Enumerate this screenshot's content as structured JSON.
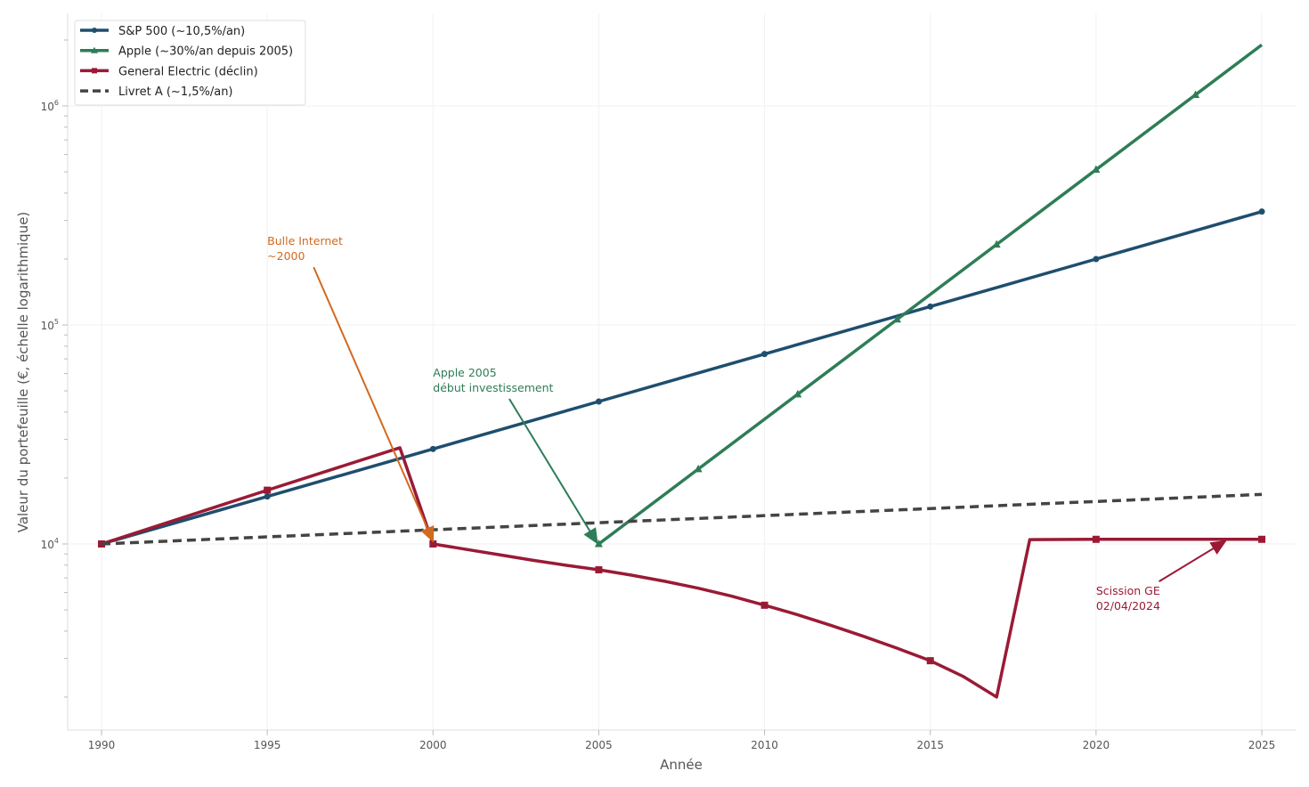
{
  "chart_data": {
    "type": "line",
    "title": "",
    "xlabel": "Année",
    "ylabel": "Valeur du portefeuille (€, échelle logarithmique)",
    "yscale": "log",
    "xlim": [
      1989,
      2026
    ],
    "ylim": [
      1413,
      2600000
    ],
    "xticks": [
      1990,
      1995,
      2000,
      2005,
      2010,
      2015,
      2020,
      2025
    ],
    "yticks": [
      {
        "value": 10000,
        "base": "10",
        "exp": "4"
      },
      {
        "value": 100000,
        "base": "10",
        "exp": "5"
      },
      {
        "value": 1000000,
        "base": "10",
        "exp": "6"
      }
    ],
    "grid": true,
    "legend_position": "top-left",
    "series": [
      {
        "name": "S&P 500 (~10,5%/an)",
        "color": "#1f4e6e",
        "marker": "circle",
        "dash": false,
        "x": [
          1990,
          1995,
          2000,
          2005,
          2010,
          2015,
          2020,
          2025
        ],
        "y": [
          10000,
          16470,
          27140,
          44710,
          73660,
          121350,
          199900,
          329300
        ],
        "marker_x": [
          1990,
          1995,
          2000,
          2005,
          2010,
          2015,
          2020,
          2025
        ]
      },
      {
        "name": "Apple (~30%/an depuis 2005)",
        "color": "#2e7d57",
        "marker": "triangle",
        "dash": false,
        "x": [
          2005,
          2008,
          2011,
          2014,
          2017,
          2020,
          2023,
          2025
        ],
        "y": [
          10000,
          21970,
          48270,
          106040,
          232980,
          511850,
          1124550,
          1900500
        ],
        "marker_x": [
          2005,
          2008,
          2011,
          2014,
          2017,
          2020,
          2023
        ]
      },
      {
        "name": "General Electric (déclin)",
        "color": "#9a1a35",
        "marker": "square",
        "dash": false,
        "x": [
          1990,
          1995,
          1999,
          2000,
          2001,
          2002,
          2003,
          2004,
          2005,
          2006,
          2007,
          2008,
          2009,
          2010,
          2011,
          2012,
          2013,
          2014,
          2015,
          2016,
          2017,
          2018,
          2020,
          2025
        ],
        "y": [
          10000,
          17600,
          27500,
          10000,
          9450,
          8930,
          8430,
          8000,
          7620,
          7200,
          6750,
          6280,
          5780,
          5250,
          4750,
          4250,
          3780,
          3340,
          2930,
          2480,
          2000,
          10470,
          10500,
          10500
        ],
        "marker_x": [
          1990,
          1995,
          2000,
          2005,
          2010,
          2015,
          2020,
          2025
        ]
      },
      {
        "name": "Livret A (~1,5%/an)",
        "color": "#444444",
        "marker": "none",
        "dash": true,
        "x": [
          1990,
          1995,
          2000,
          2005,
          2010,
          2015,
          2020,
          2025
        ],
        "y": [
          10000,
          10773,
          11605,
          12502,
          13469,
          14509,
          15631,
          16839
        ],
        "marker_x": []
      }
    ],
    "annotations": [
      {
        "lines": [
          "Bulle Internet",
          "~2000"
        ],
        "color": "#d2691e",
        "text_xy": [
          1995.0,
          243000
        ],
        "arrow_from": [
          1996.4,
          183600
        ],
        "arrow_to": [
          2000,
          10300
        ]
      },
      {
        "lines": [
          "Apple 2005",
          "début investissement"
        ],
        "color": "#2e7d57",
        "text_xy": [
          2000.0,
          61000
        ],
        "arrow_from": [
          2002.3,
          46000
        ],
        "arrow_to": [
          2004.95,
          10100
        ]
      },
      {
        "lines": [
          "Scission GE",
          "02/04/2024"
        ],
        "color": "#9a1a35",
        "text_xy": [
          2020.0,
          6150
        ],
        "arrow_from": [
          2021.9,
          6740
        ],
        "arrow_to": [
          2023.9,
          10300
        ]
      }
    ]
  }
}
